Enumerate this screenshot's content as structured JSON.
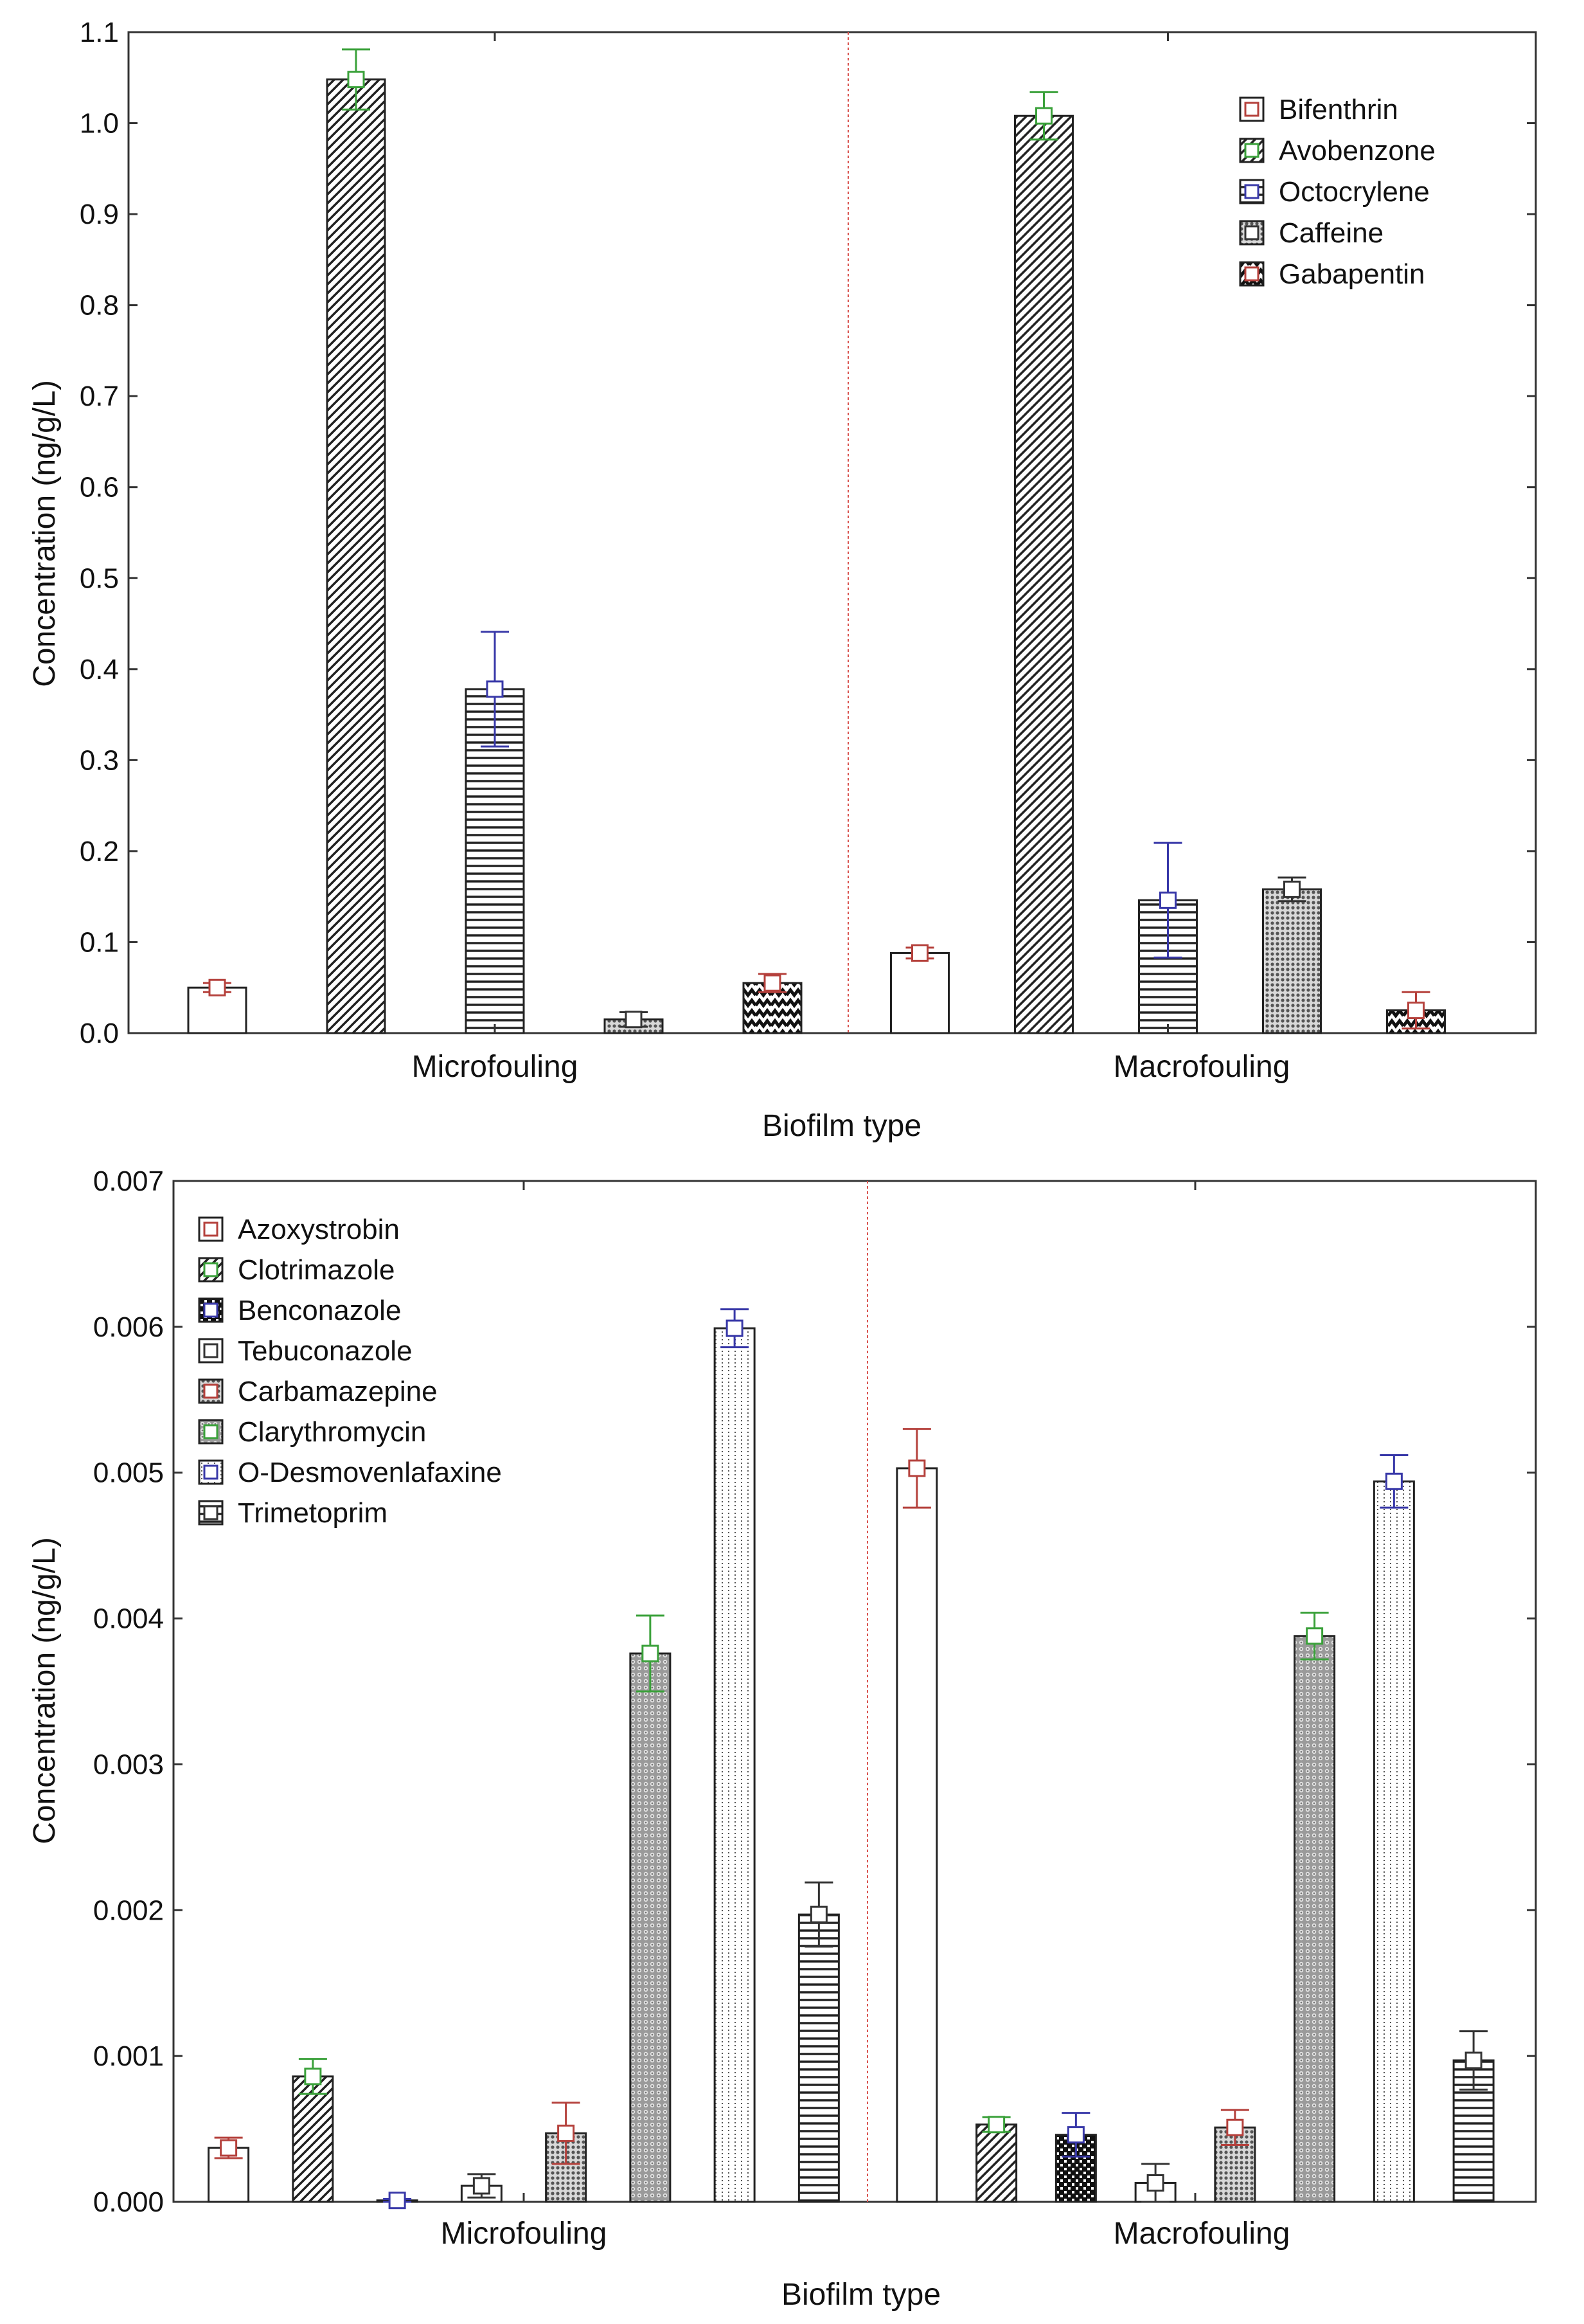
{
  "patterns": {
    "none": {},
    "diag": {},
    "hlines": {},
    "grid": {},
    "checker": {},
    "zigzag": {},
    "dots": {},
    "vdots": {}
  },
  "chart_data": [
    {
      "type": "bar",
      "title": "",
      "xlabel": "Biofilm type",
      "ylabel": "Concentration (ng/g/L)",
      "ylim": [
        0,
        1.1
      ],
      "yticks": [
        "0.0",
        "0.1",
        "0.2",
        "0.3",
        "0.4",
        "0.5",
        "0.6",
        "0.7",
        "0.8",
        "0.9",
        "1.0",
        "1.1"
      ],
      "categories": [
        "Microfouling",
        "Macrofouling"
      ],
      "legend_position": "top-right",
      "series": [
        {
          "name": "Bifenthrin",
          "pattern": "none",
          "marker_color": "#b5413c",
          "values": [
            0.05,
            0.088
          ],
          "errors": [
            0.005,
            0.006
          ]
        },
        {
          "name": "Avobenzone",
          "pattern": "diag",
          "marker_color": "#3aa13a",
          "values": [
            1.048,
            1.008
          ],
          "errors": [
            0.033,
            0.026
          ]
        },
        {
          "name": "Octocrylene",
          "pattern": "hlines",
          "marker_color": "#3838a8",
          "values": [
            0.378,
            0.146
          ],
          "errors": [
            0.063,
            0.063
          ]
        },
        {
          "name": "Caffeine",
          "pattern": "grid",
          "marker_color": "#333333",
          "values": [
            0.015,
            0.158
          ],
          "errors": [
            0.008,
            0.013
          ]
        },
        {
          "name": "Gabapentin",
          "pattern": "zigzag",
          "marker_color": "#b5413c",
          "values": [
            0.055,
            0.025
          ],
          "errors": [
            0.01,
            0.02
          ]
        }
      ]
    },
    {
      "type": "bar",
      "title": "",
      "xlabel": "Biofilm type",
      "ylabel": "Concentration (ng/g/L)",
      "ylim": [
        0,
        0.007
      ],
      "yticks": [
        "0.000",
        "0.001",
        "0.002",
        "0.003",
        "0.004",
        "0.005",
        "0.006",
        "0.007"
      ],
      "categories": [
        "Microfouling",
        "Macrofouling"
      ],
      "legend_position": "top-left",
      "series": [
        {
          "name": "Azoxystrobin",
          "pattern": "none",
          "marker_color": "#b5413c",
          "values": [
            0.00037,
            0.00503
          ],
          "errors": [
            7e-05,
            0.00027
          ]
        },
        {
          "name": "Clotrimazole",
          "pattern": "diag",
          "marker_color": "#3aa13a",
          "values": [
            0.00086,
            0.00053
          ],
          "errors": [
            0.00012,
            5e-05
          ]
        },
        {
          "name": "Benconazole",
          "pattern": "checker",
          "marker_color": "#3838a8",
          "values": [
            1e-05,
            0.00046
          ],
          "errors": [
            1e-05,
            0.00015
          ]
        },
        {
          "name": "Tebuconazole",
          "pattern": "none",
          "marker_color": "#333333",
          "values": [
            0.00011,
            0.00013
          ],
          "errors": [
            8e-05,
            0.00013
          ]
        },
        {
          "name": "Carbamazepine",
          "pattern": "grid",
          "marker_color": "#b5413c",
          "values": [
            0.00047,
            0.00051
          ],
          "errors": [
            0.00021,
            0.00012
          ]
        },
        {
          "name": "Clarythromycin",
          "pattern": "dots",
          "marker_color": "#3aa13a",
          "values": [
            0.00376,
            0.00388
          ],
          "errors": [
            0.00026,
            0.00016
          ]
        },
        {
          "name": "O-Desmovenlafaxine",
          "pattern": "vdots",
          "marker_color": "#3838a8",
          "values": [
            0.00599,
            0.00494
          ],
          "errors": [
            0.00013,
            0.00018
          ]
        },
        {
          "name": "Trimetoprim",
          "pattern": "hlines",
          "marker_color": "#333333",
          "values": [
            0.00197,
            0.00097
          ],
          "errors": [
            0.00022,
            0.0002
          ]
        }
      ]
    }
  ]
}
